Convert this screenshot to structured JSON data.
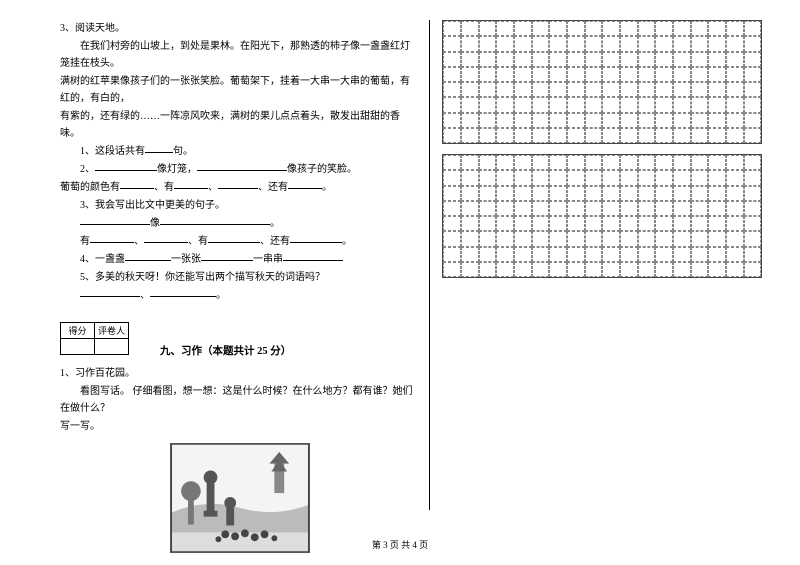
{
  "left": {
    "q3_title": "3、阅读天地。",
    "passage_l1": "　　在我们村旁的山坡上，到处是果林。在阳光下，那熟透的柿子像一盏盏红灯笼挂在枝头。",
    "passage_l2": "满树的红苹果像孩子们的一张张笑脸。葡萄架下，挂着一大串一大串的葡萄，有红的，有白的，",
    "passage_l3": "有紫的，还有绿的……一阵凉风吹来，满树的果儿点点着头，散发出甜甜的香味。",
    "sub1": "　　1、这段话共有____句。",
    "sub2_a": "　　2、_________像灯笼，_____________像孩子的笑脸。",
    "sub2_b": "葡萄的颜色有_____、有_____、______、还有_____。",
    "sub3_a": "　　3、我会写出比文中更美的句子。",
    "sub3_b": "　　__________像________________。",
    "sub3_c": "　　有_______、_______、有________、还有________。",
    "sub4": "　　4、一盏盏_______一张张________一串串_________",
    "sub5_a": "　　5、多美的秋天呀！你还能写出两个描写秋天的词语吗？",
    "sub5_b": "　　_________、__________。",
    "score_cells": [
      "得分",
      "评卷人"
    ],
    "section_nine": "九、习作（本题共计 25 分）",
    "ex1_title": "1、习作百花园。",
    "ex1_l1": "　　看图写话。 仔细看图，想一想：这是什么时候？在什么地方？都有谁？她们在做什么？",
    "ex1_l2": "写一写。"
  },
  "colors": {
    "ink": "#000000",
    "bg": "#ffffff",
    "grid_border": "#444444",
    "grid_dash": "#888888",
    "illus_border": "#555555",
    "illus_bg": "#f5f5f5"
  },
  "footer": "第 3 页 共 4 页"
}
